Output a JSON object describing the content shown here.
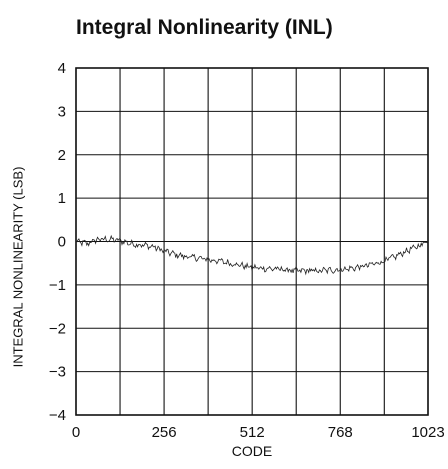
{
  "chart_data": {
    "type": "line",
    "title": "Integral Nonlinearity (INL)",
    "xlabel": "CODE",
    "ylabel": "INTEGRAL NONLINEARITY (LSB)",
    "xlim": [
      0,
      1023
    ],
    "ylim": [
      -4,
      4
    ],
    "x_ticks": [
      0,
      128,
      256,
      384,
      512,
      640,
      768,
      896,
      1023
    ],
    "x_tick_labels": [
      "0",
      "",
      "256",
      "",
      "512",
      "",
      "768",
      "",
      "1023"
    ],
    "y_ticks": [
      -4,
      -3,
      -2,
      -1,
      0,
      1,
      2,
      3,
      4
    ],
    "y_tick_labels": [
      "−4",
      "−3",
      "−2",
      "−1",
      "0",
      "1",
      "2",
      "3",
      "4"
    ],
    "grid": true,
    "series": [
      {
        "x": [
          0,
          32,
          64,
          96,
          128,
          160,
          192,
          224,
          256,
          288,
          320,
          352,
          384,
          416,
          448,
          480,
          512,
          544,
          576,
          608,
          640,
          672,
          704,
          736,
          768,
          800,
          832,
          864,
          896,
          928,
          960,
          992,
          1023
        ],
        "values": [
          0.0,
          -0.05,
          0.05,
          0.05,
          0.02,
          -0.05,
          -0.08,
          -0.12,
          -0.22,
          -0.3,
          -0.35,
          -0.38,
          -0.42,
          -0.45,
          -0.5,
          -0.55,
          -0.6,
          -0.62,
          -0.63,
          -0.65,
          -0.68,
          -0.67,
          -0.68,
          -0.66,
          -0.65,
          -0.62,
          -0.58,
          -0.52,
          -0.45,
          -0.35,
          -0.22,
          -0.12,
          0.02
        ]
      }
    ]
  }
}
